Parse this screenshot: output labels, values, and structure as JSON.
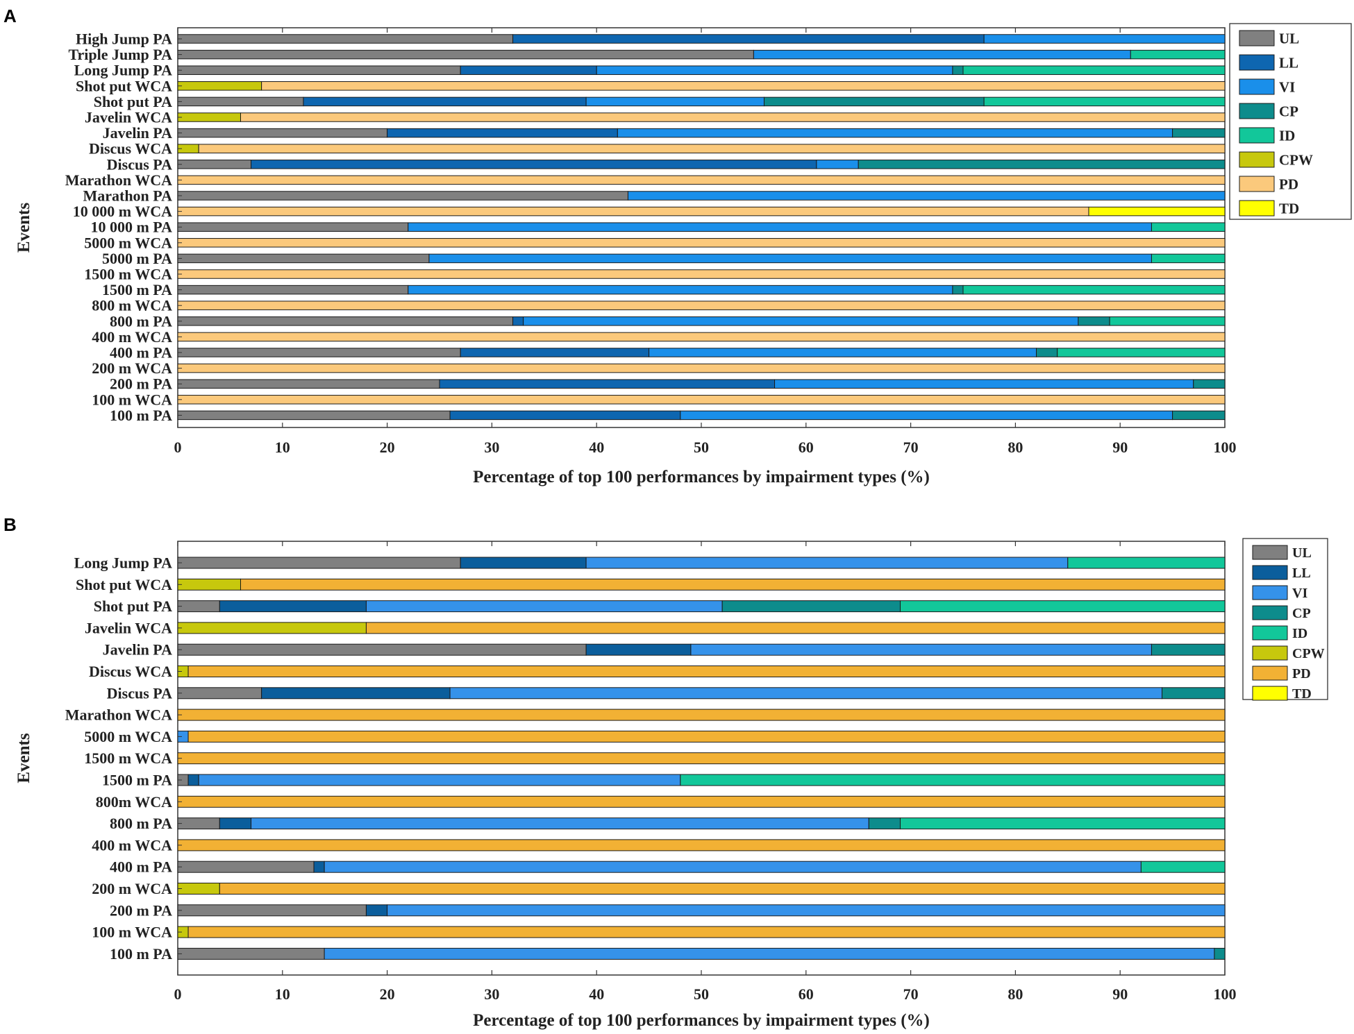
{
  "colors": {
    "UL": "#808080",
    "LL": "#0e66b0",
    "VI": "#1a8fea",
    "CP": "#0d8c8c",
    "ID": "#12c79a",
    "CPW": "#c7c80d",
    "PD": "#fbc97c",
    "TD": "#ffff00",
    "PD_B": "#f2b134",
    "LL_B": "#0b5e9c",
    "VI_B": "#3592ea"
  },
  "chart_data": [
    {
      "panel": "A",
      "type": "bar",
      "orientation": "horizontal",
      "stacked": true,
      "xlabel": "Percentage of top 100 performances by impairment types  (%)",
      "ylabel": "Events",
      "xlim": [
        0,
        100
      ],
      "xticks": [
        "0",
        "10",
        "20",
        "30",
        "40",
        "50",
        "60",
        "70",
        "80",
        "90",
        "100"
      ],
      "legend": [
        "UL",
        "LL",
        "VI",
        "CP",
        "ID",
        "CPW",
        "PD",
        "TD"
      ],
      "legend_position": "outside-right",
      "categories": [
        "High Jump PA",
        "Triple Jump PA",
        "Long Jump PA",
        "Shot put WCA",
        "Shot put PA",
        "Javelin WCA",
        "Javelin PA",
        "Discus WCA",
        "Discus PA",
        "Marathon WCA",
        "Marathon PA",
        "10 000 m WCA",
        "10 000 m PA",
        "5000 m WCA",
        "5000 m PA",
        "1500 m WCA",
        "1500 m PA",
        "800 m WCA",
        "800 m PA",
        "400 m WCA",
        "400 m PA",
        "200 m WCA",
        "200 m PA",
        "100 m WCA",
        "100 m PA"
      ],
      "series": [
        {
          "name": "UL",
          "values": [
            32,
            55,
            27,
            0,
            12,
            0,
            20,
            0,
            7,
            0,
            43,
            0,
            22,
            0,
            24,
            0,
            22,
            0,
            32,
            0,
            27,
            0,
            25,
            0,
            26
          ]
        },
        {
          "name": "LL",
          "values": [
            45,
            0,
            13,
            0,
            27,
            0,
            22,
            0,
            54,
            0,
            0,
            0,
            0,
            0,
            0,
            0,
            0,
            0,
            1,
            0,
            18,
            0,
            32,
            0,
            22
          ]
        },
        {
          "name": "VI",
          "values": [
            23,
            36,
            34,
            0,
            17,
            0,
            53,
            0,
            4,
            0,
            57,
            0,
            71,
            0,
            69,
            0,
            52,
            0,
            53,
            0,
            37,
            0,
            40,
            0,
            47
          ]
        },
        {
          "name": "CP",
          "values": [
            0,
            0,
            1,
            0,
            21,
            0,
            5,
            0,
            35,
            0,
            0,
            0,
            0,
            0,
            0,
            0,
            1,
            0,
            3,
            0,
            2,
            0,
            3,
            0,
            5
          ]
        },
        {
          "name": "ID",
          "values": [
            0,
            9,
            25,
            0,
            23,
            0,
            0,
            0,
            0,
            0,
            0,
            0,
            7,
            0,
            7,
            0,
            25,
            0,
            11,
            0,
            16,
            0,
            0,
            0,
            0
          ]
        },
        {
          "name": "CPW",
          "values": [
            0,
            0,
            0,
            8,
            0,
            6,
            0,
            2,
            0,
            0,
            0,
            0,
            0,
            0,
            0,
            0,
            0,
            0,
            0,
            0,
            0,
            0,
            0,
            0,
            0
          ]
        },
        {
          "name": "PD",
          "values": [
            0,
            0,
            0,
            92,
            0,
            94,
            0,
            98,
            0,
            100,
            0,
            87,
            0,
            100,
            0,
            100,
            0,
            100,
            0,
            100,
            0,
            100,
            0,
            100,
            0
          ]
        },
        {
          "name": "TD",
          "values": [
            0,
            0,
            0,
            0,
            0,
            0,
            0,
            0,
            0,
            0,
            0,
            13,
            0,
            0,
            0,
            0,
            0,
            0,
            0,
            0,
            0,
            0,
            0,
            0,
            0
          ]
        }
      ]
    },
    {
      "panel": "B",
      "type": "bar",
      "orientation": "horizontal",
      "stacked": true,
      "xlabel": "Percentage of top 100 performances by impairment types (%)",
      "ylabel": "Events",
      "xlim": [
        0,
        100
      ],
      "xticks": [
        "0",
        "10",
        "20",
        "30",
        "40",
        "50",
        "60",
        "70",
        "80",
        "90",
        "100"
      ],
      "legend": [
        "UL",
        "LL",
        "VI",
        "CP",
        "ID",
        "CPW",
        "PD",
        "TD"
      ],
      "legend_position": "outside-right",
      "categories": [
        "Long Jump PA",
        "Shot put WCA",
        "Shot put PA",
        "Javelin WCA",
        "Javelin PA",
        "Discus WCA",
        "Discus PA",
        "Marathon WCA",
        "5000 m WCA",
        "1500 m WCA",
        "1500 m PA",
        "800m WCA",
        "800 m PA",
        "400 m WCA",
        "400 m PA",
        "200 m WCA",
        "200 m PA",
        "100 m WCA",
        "100 m PA"
      ],
      "series": [
        {
          "name": "UL",
          "values": [
            27,
            0,
            4,
            0,
            39,
            0,
            8,
            0,
            0,
            0,
            1,
            0,
            4,
            0,
            13,
            0,
            18,
            0,
            14
          ]
        },
        {
          "name": "LL",
          "values": [
            12,
            0,
            14,
            0,
            10,
            0,
            18,
            0,
            0,
            0,
            1,
            0,
            3,
            0,
            1,
            0,
            2,
            0,
            0
          ]
        },
        {
          "name": "VI",
          "values": [
            46,
            0,
            34,
            0,
            44,
            0,
            68,
            0,
            1,
            0,
            46,
            0,
            59,
            0,
            78,
            0,
            80,
            0,
            85
          ]
        },
        {
          "name": "CP",
          "values": [
            0,
            0,
            17,
            0,
            7,
            0,
            6,
            0,
            0,
            0,
            0,
            0,
            3,
            0,
            0,
            0,
            0,
            0,
            1
          ]
        },
        {
          "name": "ID",
          "values": [
            15,
            0,
            31,
            0,
            0,
            0,
            0,
            0,
            0,
            0,
            52,
            0,
            31,
            0,
            8,
            0,
            0,
            0,
            0
          ]
        },
        {
          "name": "CPW",
          "values": [
            0,
            6,
            0,
            18,
            0,
            1,
            0,
            0,
            0,
            0,
            0,
            0,
            0,
            0,
            0,
            4,
            0,
            1,
            0
          ]
        },
        {
          "name": "PD",
          "values": [
            0,
            94,
            0,
            82,
            0,
            99,
            0,
            100,
            99,
            100,
            0,
            100,
            0,
            100,
            0,
            96,
            0,
            99,
            0
          ]
        },
        {
          "name": "TD",
          "values": [
            0,
            0,
            0,
            0,
            0,
            0,
            0,
            0,
            0,
            0,
            0,
            0,
            0,
            0,
            0,
            0,
            0,
            0,
            0
          ]
        }
      ]
    }
  ],
  "panels": [
    {
      "letter": "A"
    },
    {
      "letter": "B"
    }
  ]
}
